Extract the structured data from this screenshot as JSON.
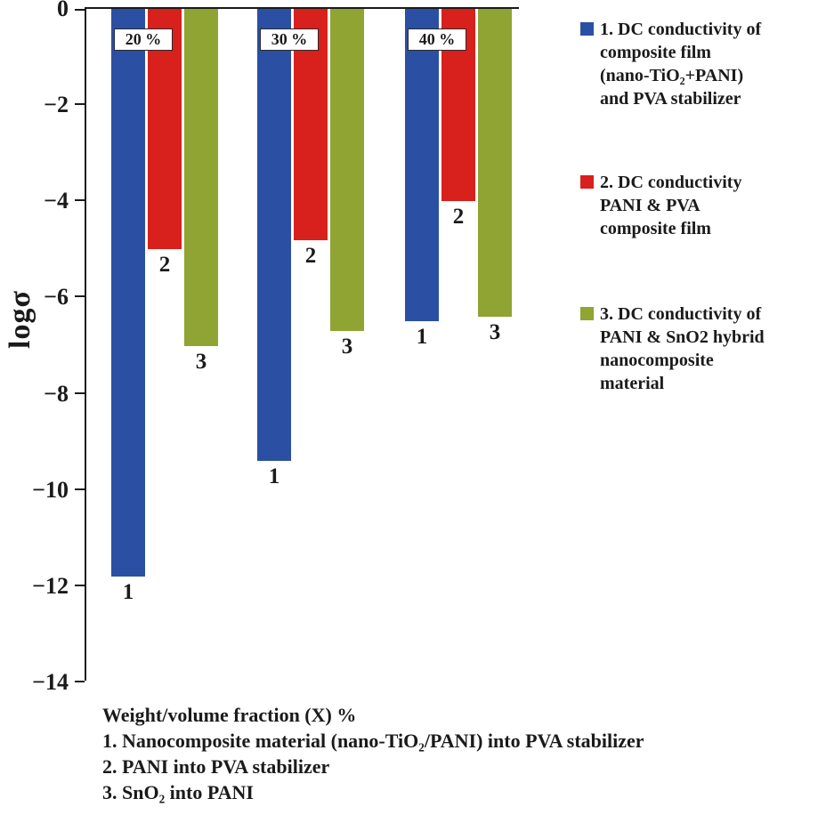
{
  "chart_data": {
    "type": "bar",
    "title": "",
    "ylabel": "logσ",
    "xlabel": "Weight/volume fraction (X) %",
    "ylim": [
      -14,
      0
    ],
    "grid": false,
    "legend_position": "right",
    "yticks": [
      0,
      -2,
      -4,
      -6,
      -8,
      -10,
      -12,
      -14
    ],
    "ytick_labels": [
      "0",
      "−2",
      "−4",
      "−6",
      "−8",
      "−10",
      "−12",
      "−14"
    ],
    "groups": [
      "20 %",
      "30 %",
      "40 %"
    ],
    "series": [
      {
        "name": "1",
        "label": "DC conductivity of composite film (nano-TiO₂+PANI) and PVA stabilizer",
        "color": "#2b4fa3",
        "values": [
          -11.8,
          -9.4,
          -6.5
        ]
      },
      {
        "name": "2",
        "label": "DC conductivity PANI & PVA composite film",
        "color": "#d8201d",
        "values": [
          -5.0,
          -4.8,
          -4.0
        ]
      },
      {
        "name": "3",
        "label": "DC conductivity of PANI & SnO2 hybrid nanocomposite material",
        "color": "#8fa433",
        "values": [
          -7.0,
          -6.7,
          -6.4
        ]
      }
    ]
  },
  "legend": {
    "items": [
      {
        "color": "#2b4fa3",
        "lines": [
          "1. DC conductivity of",
          "composite film",
          "(nano-TiO₂+PANI)",
          "and PVA stabilizer"
        ]
      },
      {
        "color": "#d8201d",
        "lines": [
          "2. DC conductivity",
          "PANI & PVA",
          "composite film"
        ]
      },
      {
        "color": "#8fa433",
        "lines": [
          "3. DC conductivity of",
          "PANI & SnO2 hybrid",
          "nanocomposite",
          "material"
        ]
      }
    ]
  },
  "footer": {
    "lines": [
      "Weight/volume fraction (X) %",
      "1. Nanocomposite material (nano-TiO₂/PANI) into PVA stabilizer",
      "2. PANI into PVA stabilizer",
      "3. SnO₂ into PANI"
    ]
  },
  "colors": {
    "axis": "#1a1a1a",
    "background": "#ffffff"
  }
}
